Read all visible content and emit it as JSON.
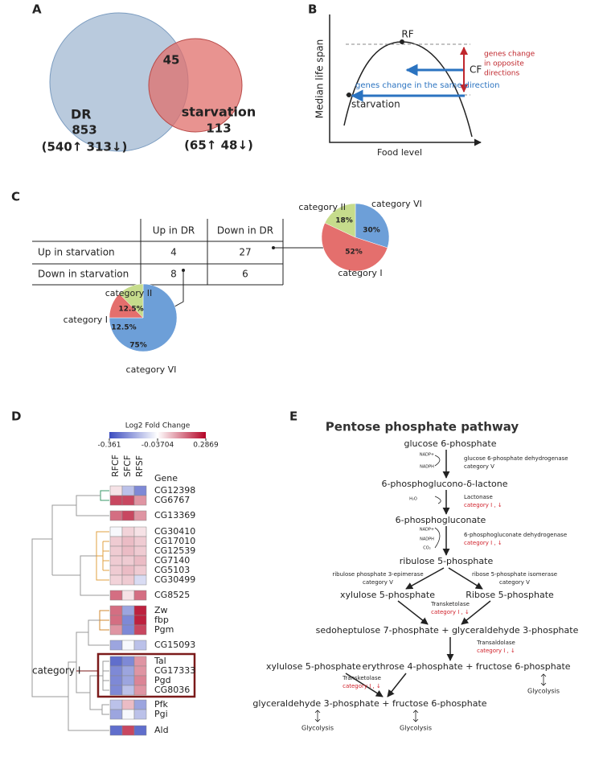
{
  "panel_a": {
    "letter": "A",
    "overlap": 45,
    "dr_name": "DR",
    "dr_total": 853,
    "dr_split": "(540↑   313↓)",
    "st_name": "starvation",
    "st_total": 113,
    "st_split": "(65↑   48↓)"
  },
  "panel_b": {
    "letter": "B",
    "peak": "RF",
    "shift": "CF",
    "opposite": [
      "genes change",
      "in opposite",
      "directions"
    ],
    "same": "genes change in the same direction",
    "low": "starvation",
    "ylabel": "Median life span",
    "xlabel": "Food level"
  },
  "panel_c": {
    "letter": "C",
    "columns": [
      "Up in DR",
      "Down in DR"
    ],
    "rows": [
      [
        "Up in starvation",
        4,
        27
      ],
      [
        "Down in starvation",
        8,
        6
      ]
    ]
  },
  "chart_data": [
    {
      "type": "pie",
      "categories": [
        "category VI",
        "category I",
        "category II"
      ],
      "values": [
        30,
        52,
        18
      ],
      "value_labels": [
        "30%",
        "52%",
        "18%"
      ],
      "colors": [
        "#6d9fd8",
        "#e46f6d",
        "#c6dc8c"
      ]
    },
    {
      "type": "pie",
      "categories": [
        "category VI",
        "category I",
        "category II"
      ],
      "values": [
        75,
        12.5,
        12.5
      ],
      "value_labels": [
        "75%",
        "12.5%",
        "12.5%"
      ],
      "colors": [
        "#6d9fd8",
        "#e46f6d",
        "#c6dc8c"
      ]
    }
  ],
  "heatmap": {
    "letter": "D",
    "legend_title": "Log2 Fold Change",
    "ticks": [
      -0.361,
      -0.03704,
      0.2869
    ],
    "colormap": [
      "#3b4cc0",
      "#ffffff",
      "#b40426"
    ],
    "columns": [
      "RFCF",
      "SFCF",
      "RFSF"
    ],
    "gene_header": "Gene",
    "group_label": "category I",
    "genes": [
      "CG12398",
      "CG6767",
      "CG13369",
      "CG30410",
      "CG17010",
      "CG12539",
      "CG7140",
      "CG5103",
      "CG30499",
      "CG8525",
      "Zw",
      "fbp",
      "Pgm",
      "CG15093",
      "Tal",
      "CG17333",
      "Pgd",
      "CG8036",
      "Pfk",
      "Pgi",
      "Ald"
    ],
    "values": [
      [
        0,
        -0.15,
        -0.25
      ],
      [
        0.2,
        0.2,
        0.1
      ],
      [
        0.15,
        0.2,
        0.1
      ],
      [
        -0.05,
        0.02,
        0
      ],
      [
        0.03,
        0.05,
        0.03
      ],
      [
        0.03,
        0.05,
        0.03
      ],
      [
        0.03,
        0.03,
        0.05
      ],
      [
        0.03,
        0.05,
        0.03
      ],
      [
        0.02,
        0.03,
        -0.1
      ],
      [
        0.15,
        0,
        0.15
      ],
      [
        0.15,
        -0.2,
        0.25
      ],
      [
        0.15,
        -0.25,
        0.25
      ],
      [
        0.1,
        -0.25,
        0.2
      ],
      [
        -0.2,
        -0.05,
        -0.15
      ],
      [
        -0.3,
        -0.25,
        0.1
      ],
      [
        -0.25,
        -0.2,
        0.1
      ],
      [
        -0.25,
        -0.2,
        0.12
      ],
      [
        -0.25,
        -0.15,
        0.1
      ],
      [
        -0.15,
        0.05,
        -0.2
      ],
      [
        -0.2,
        -0.05,
        -0.15
      ],
      [
        -0.3,
        0.2,
        -0.3
      ]
    ]
  },
  "pathway": {
    "letter": "E",
    "title": "Pentose phosphate pathway",
    "nodes": [
      "glucose 6-phosphate",
      "6-phosphoglucono-δ-lactone",
      "6-phosphogluconate",
      "ribulose 5-phosphate",
      "xylulose 5-phosphate",
      "Ribose 5-phosphate",
      "sedoheptulose 7-phosphate + glyceraldehyde 3-phosphate",
      "xylulose 5-phosphate",
      "erythrose 4-phosphate + fructose 6-phosphate",
      "glyceraldehyde 3-phosphate  + fructose 6-phosphate"
    ],
    "enzymes": [
      [
        "glucose 6-phosphate dehydrogenase",
        "category  V"
      ],
      [
        "Lactonase",
        "category I , ↓"
      ],
      [
        "6-phosphogluconate dehydrogenase",
        "category I , ↓"
      ],
      [
        "ribulose phosphate 3-epimerase",
        "category V"
      ],
      [
        "ribose 5-phosphate isomerase",
        "category V"
      ],
      [
        "Transketolase",
        "category I , ↓"
      ],
      [
        "Transaldolase",
        "category I , ↓"
      ],
      [
        "Transketolase",
        "category I , ↓"
      ]
    ],
    "cofactors": [
      "NADP+",
      "NADPH",
      "H₂O",
      "NADP+",
      "NADPH",
      "CO₂"
    ],
    "glycolysis": [
      "Glycolysis",
      "Glycolysis",
      "Glycolysis"
    ]
  }
}
